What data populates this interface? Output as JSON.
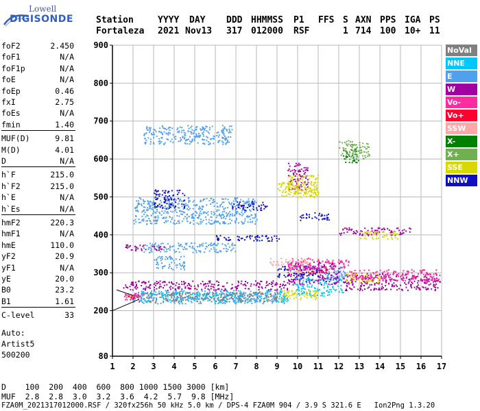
{
  "logo": {
    "line1": "Lowell",
    "line2": "DIGISONDE"
  },
  "header": {
    "labels": {
      "station": "Station",
      "yyyy": "YYYY",
      "day": "DAY",
      "ddd": "DDD",
      "hhmmss": "HHMMSS",
      "p1": "P1",
      "ffs": "FFS",
      "s": "S",
      "axn": "AXN",
      "pps": "PPS",
      "iga": "IGA",
      "ps": "PS"
    },
    "values": {
      "station": "Fortaleza",
      "yyyy": "2021",
      "day": "Nov13",
      "ddd": "317",
      "hhmmss": "012000",
      "p1": "RSF",
      "s": "1",
      "axn": "714",
      "pps": "100",
      "iga": "10+",
      "ps": "11"
    }
  },
  "params": [
    {
      "k": "foF2",
      "v": "2.450"
    },
    {
      "k": "foF1",
      "v": "N/A"
    },
    {
      "k": "foF1p",
      "v": "N/A"
    },
    {
      "k": "foE",
      "v": "N/A"
    },
    {
      "k": "foEp",
      "v": "0.46"
    },
    {
      "k": "fxI",
      "v": "2.75"
    },
    {
      "k": "foEs",
      "v": "N/A"
    },
    {
      "k": "fmin",
      "v": "1.40"
    },
    {
      "k": "MUF(D)",
      "v": "9.81"
    },
    {
      "k": "M(D)",
      "v": "4.01"
    },
    {
      "k": "D",
      "v": "N/A"
    },
    {
      "k": "h`F",
      "v": "215.0"
    },
    {
      "k": "h`F2",
      "v": "215.0"
    },
    {
      "k": "h`E",
      "v": "N/A"
    },
    {
      "k": "h`Es",
      "v": "N/A"
    },
    {
      "k": "hmF2",
      "v": "220.3"
    },
    {
      "k": "hmF1",
      "v": "N/A"
    },
    {
      "k": "hmE",
      "v": "110.0"
    },
    {
      "k": "yF2",
      "v": "20.9"
    },
    {
      "k": "yF1",
      "v": "N/A"
    },
    {
      "k": "yE",
      "v": "20.0"
    },
    {
      "k": "B0",
      "v": "23.2"
    },
    {
      "k": "B1",
      "v": "1.61"
    },
    {
      "k": "C-level",
      "v": "33"
    }
  ],
  "auto": {
    "line1": "Auto:",
    "line2": "Artist5",
    "line3": "500200"
  },
  "legend": [
    {
      "label": "NoVal",
      "color": "#808080"
    },
    {
      "label": "NNE",
      "color": "#00c8ff"
    },
    {
      "label": "E",
      "color": "#50a0f0"
    },
    {
      "label": "W",
      "color": "#a000a0"
    },
    {
      "label": "Vo-",
      "color": "#ff2ca0"
    },
    {
      "label": "Vo+",
      "color": "#ff0030"
    },
    {
      "label": "SSW",
      "color": "#ffa8a8"
    },
    {
      "label": "X-",
      "color": "#008000"
    },
    {
      "label": "X+",
      "color": "#70b050"
    },
    {
      "label": "SSE",
      "color": "#d8d800"
    },
    {
      "label": "NNW",
      "color": "#1010c0"
    }
  ],
  "footer": {
    "line1": "D    100  200  400  600  800 1000 1500 3000 [km]",
    "line2": "MUF  2.8  2.8  3.0  3.2  3.6  4.2  5.7  9.8 [MHz]",
    "line3": "FZA0M_2021317012000.RSF / 320fx256h 50 kHz 5.0 km / DPS-4 FZA0M 904 / 3.9 S 321.6 E   Ion2Png 1.3.20"
  },
  "chart_data": {
    "type": "scatter",
    "title": "",
    "xlabel": "",
    "ylabel": "",
    "xlim": [
      1,
      17
    ],
    "ylim": [
      80,
      900
    ],
    "x_ticks": [
      "1",
      "2",
      "3",
      "4",
      "5",
      "6",
      "7",
      "8",
      "9",
      "10",
      "11",
      "12",
      "13",
      "14",
      "15",
      "16",
      "17"
    ],
    "y_ticks": [
      "80",
      "200",
      "300",
      "400",
      "500",
      "600",
      "700",
      "800",
      "900"
    ],
    "grid": true,
    "series": [
      {
        "name": "E",
        "color": "#50a0f0",
        "regions": [
          [
            1.9,
            9.5,
            220,
            250
          ],
          [
            2.5,
            6.8,
            640,
            690
          ],
          [
            2.0,
            8.0,
            430,
            500
          ],
          [
            2.5,
            7.0,
            355,
            380
          ],
          [
            3.0,
            4.5,
            310,
            345
          ],
          [
            11.0,
            12.3,
            280,
            320
          ]
        ]
      },
      {
        "name": "NNE",
        "color": "#00c8ff",
        "regions": [
          [
            2.2,
            9.5,
            225,
            255
          ],
          [
            9.8,
            12.2,
            240,
            290
          ]
        ]
      },
      {
        "name": "W",
        "color": "#a000a0",
        "regions": [
          [
            1.5,
            9.5,
            255,
            280
          ],
          [
            9.5,
            12.0,
            270,
            330
          ],
          [
            12.2,
            16.9,
            255,
            300
          ],
          [
            12.0,
            15.5,
            400,
            420
          ],
          [
            9.5,
            10.5,
            520,
            590
          ],
          [
            1.6,
            3.5,
            360,
            375
          ]
        ]
      },
      {
        "name": "NNW",
        "color": "#1010c0",
        "regions": [
          [
            6.0,
            9.3,
            385,
            400
          ],
          [
            9.0,
            11.0,
            290,
            320
          ],
          [
            10.0,
            11.5,
            440,
            460
          ],
          [
            3.0,
            4.5,
            470,
            520
          ],
          [
            6.8,
            8.5,
            465,
            490
          ]
        ]
      },
      {
        "name": "SSE",
        "color": "#d8d800",
        "regions": [
          [
            9.0,
            11.0,
            230,
            255
          ],
          [
            9.5,
            11.0,
            510,
            560
          ],
          [
            12.3,
            14.0,
            275,
            300
          ],
          [
            13.0,
            15.0,
            390,
            410
          ],
          [
            9.0,
            11.0,
            500,
            540
          ]
        ]
      },
      {
        "name": "Vo-",
        "color": "#ff2ca0",
        "regions": [
          [
            1.5,
            2.5,
            225,
            250
          ],
          [
            9.5,
            12.5,
            310,
            340
          ],
          [
            12.5,
            16.9,
            280,
            310
          ]
        ]
      },
      {
        "name": "Vo+",
        "color": "#ff0030",
        "regions": [
          [
            1.7,
            2.4,
            232,
            245
          ],
          [
            10.0,
            11.5,
            300,
            310
          ]
        ]
      },
      {
        "name": "SSW",
        "color": "#ffa8a8",
        "regions": [
          [
            8.5,
            10.5,
            320,
            340
          ],
          [
            9.5,
            10.5,
            300,
            320
          ]
        ]
      },
      {
        "name": "X-",
        "color": "#008000",
        "regions": [
          [
            12.2,
            13.0,
            590,
            630
          ]
        ]
      },
      {
        "name": "X+",
        "color": "#70b050",
        "regions": [
          [
            12.0,
            13.5,
            600,
            650
          ]
        ]
      },
      {
        "name": "NoVal",
        "color": "#808080",
        "regions": [
          [
            2.5,
            9.0,
            225,
            250
          ]
        ]
      }
    ]
  }
}
